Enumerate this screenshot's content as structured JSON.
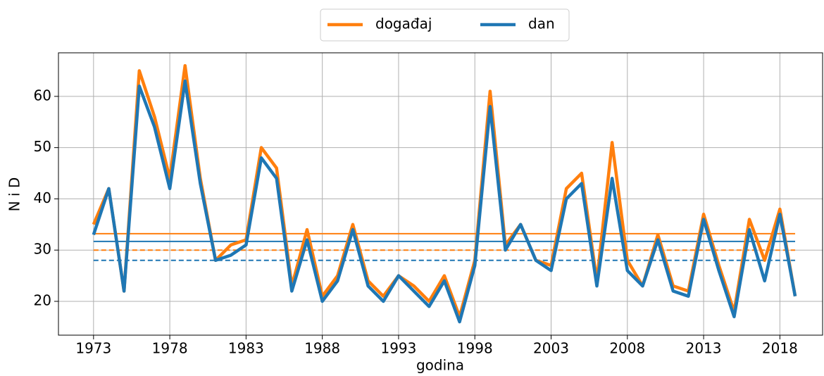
{
  "chart_data": {
    "type": "line",
    "x_label": "godina",
    "y_label": "N i D",
    "x": [
      1973,
      1974,
      1975,
      1976,
      1977,
      1978,
      1979,
      1980,
      1981,
      1982,
      1983,
      1984,
      1985,
      1986,
      1987,
      1988,
      1989,
      1990,
      1991,
      1992,
      1993,
      1994,
      1995,
      1996,
      1997,
      1998,
      1999,
      2000,
      2001,
      2002,
      2003,
      2004,
      2005,
      2006,
      2007,
      2008,
      2009,
      2010,
      2011,
      2012,
      2013,
      2014,
      2015,
      2016,
      2017,
      2018,
      2019
    ],
    "series": [
      {
        "name": "događaj",
        "color": "#ff7f0e",
        "values": [
          35,
          42,
          22,
          65,
          56,
          44,
          66,
          44,
          28,
          31,
          32,
          50,
          46,
          23,
          34,
          21,
          25,
          35,
          24,
          21,
          25,
          23,
          20,
          25,
          17,
          28,
          61,
          31,
          35,
          28,
          27,
          42,
          45,
          24,
          51,
          28,
          23,
          33,
          23,
          22,
          37,
          27,
          18,
          36,
          28,
          38,
          21
        ]
      },
      {
        "name": "dan",
        "color": "#1f77b4",
        "values": [
          33,
          42,
          22,
          62,
          54,
          42,
          63,
          43,
          28,
          29,
          31,
          48,
          44,
          22,
          32,
          20,
          24,
          34,
          23,
          20,
          25,
          22,
          19,
          24,
          16,
          27,
          58,
          30,
          35,
          28,
          26,
          40,
          43,
          23,
          44,
          26,
          23,
          32,
          22,
          21,
          36,
          26,
          17,
          34,
          24,
          37,
          21
        ]
      }
    ],
    "hlines": [
      {
        "value": 33.2,
        "color": "#ff7f0e",
        "dashed": false
      },
      {
        "value": 30,
        "color": "#ff7f0e",
        "dashed": true
      },
      {
        "value": 31.7,
        "color": "#1f77b4",
        "dashed": false
      },
      {
        "value": 28,
        "color": "#1f77b4",
        "dashed": true
      }
    ],
    "xlim": [
      1970.7,
      2020.8
    ],
    "ylim": [
      13.4,
      68.5
    ],
    "xticks": [
      1973,
      1978,
      1983,
      1988,
      1993,
      1998,
      2003,
      2008,
      2013,
      2018
    ],
    "yticks": [
      20,
      30,
      40,
      50,
      60
    ],
    "grid": true,
    "legend": "top"
  }
}
